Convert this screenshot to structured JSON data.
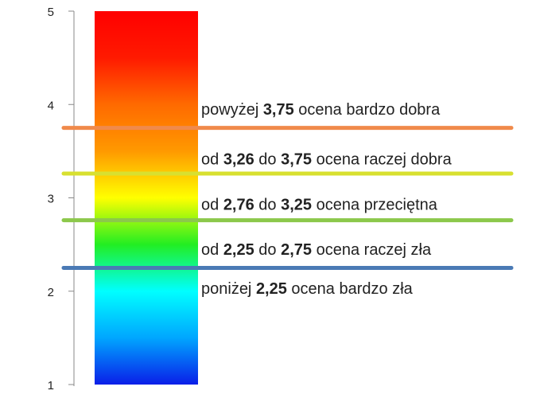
{
  "chart_data": {
    "type": "bar",
    "ylim": [
      1,
      5
    ],
    "y_ticks": [
      "1",
      "2",
      "3",
      "4",
      "5"
    ],
    "gradient_bar": {
      "from": 1,
      "to": 5,
      "colors": [
        "#0a1ee8",
        "#00a6ff",
        "#00ffff",
        "#22ee22",
        "#ffff00",
        "#ff9900",
        "#ff6a00",
        "#ff1a00",
        "#ff0000"
      ]
    },
    "thresholds": [
      {
        "value": 3.75,
        "color": "#f08a4b"
      },
      {
        "value": 3.26,
        "color": "#d8e030"
      },
      {
        "value": 2.76,
        "color": "#8cc84b"
      },
      {
        "value": 2.25,
        "color": "#4a7ab5"
      }
    ],
    "bands": [
      {
        "id": "b1",
        "y": 3.95,
        "parts": [
          [
            "powyżej ",
            false
          ],
          [
            "3,75",
            true
          ],
          [
            " ocena bardzo dobra",
            false
          ]
        ]
      },
      {
        "id": "b2",
        "y": 3.42,
        "parts": [
          [
            "od ",
            false
          ],
          [
            "3,26",
            true
          ],
          [
            " do ",
            false
          ],
          [
            "3,75",
            true
          ],
          [
            " ocena raczej dobra",
            false
          ]
        ]
      },
      {
        "id": "b3",
        "y": 2.93,
        "parts": [
          [
            "od ",
            false
          ],
          [
            "2,76",
            true
          ],
          [
            " do ",
            false
          ],
          [
            "3,25",
            true
          ],
          [
            " ocena przeciętna",
            false
          ]
        ]
      },
      {
        "id": "b4",
        "y": 2.45,
        "parts": [
          [
            "od ",
            false
          ],
          [
            "2,25",
            true
          ],
          [
            " do ",
            false
          ],
          [
            "2,75",
            true
          ],
          [
            " ocena raczej zła",
            false
          ]
        ]
      },
      {
        "id": "b5",
        "y": 2.03,
        "parts": [
          [
            "poniżej ",
            false
          ],
          [
            "2,25",
            true
          ],
          [
            " ocena bardzo zła",
            false
          ]
        ]
      }
    ]
  }
}
